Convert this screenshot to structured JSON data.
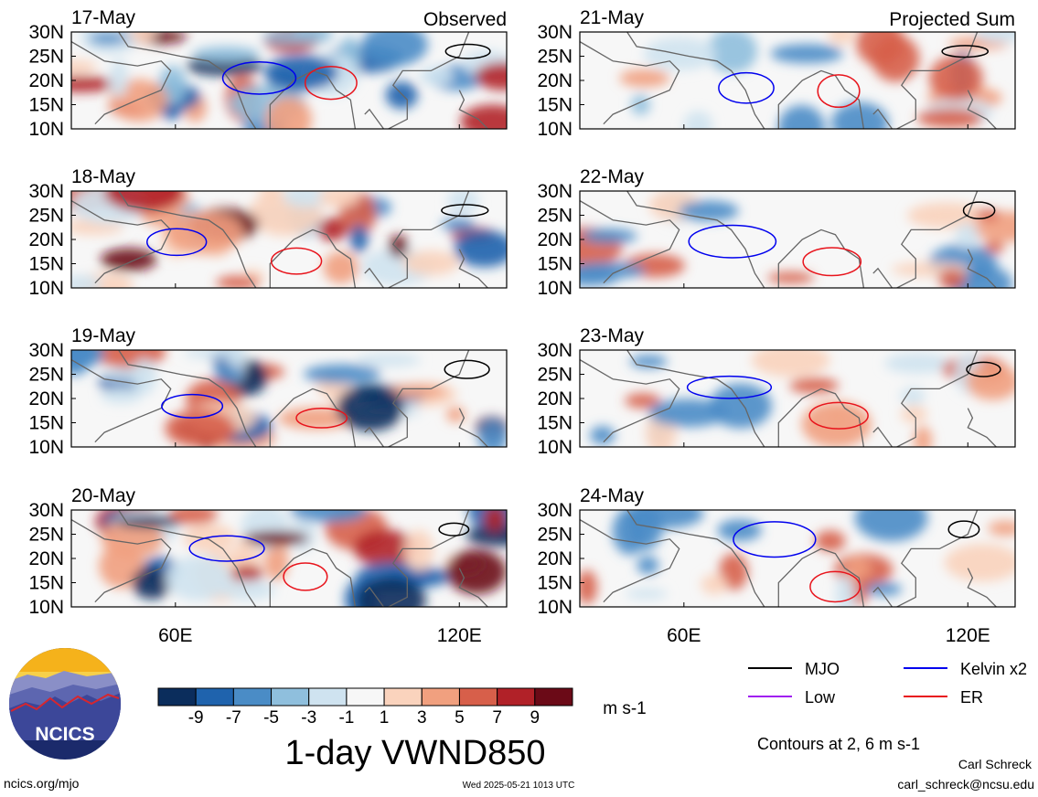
{
  "chart_data": {
    "type": "heatmap",
    "variable_title": "1-day VWND850",
    "units": "m s-1",
    "columns": [
      {
        "header": "Observed",
        "dates": [
          "17-May",
          "18-May",
          "19-May",
          "20-May"
        ]
      },
      {
        "header": "Projected Sum",
        "dates": [
          "21-May",
          "22-May",
          "23-May",
          "24-May"
        ]
      }
    ],
    "y_ticks": [
      "30N",
      "25N",
      "20N",
      "15N",
      "10N"
    ],
    "x_ticks": [
      "60E",
      "120E"
    ],
    "lat_range": [
      10,
      30
    ],
    "lon_range": [
      38,
      130
    ],
    "colorbar": {
      "labels": [
        "-9",
        "-7",
        "-5",
        "-3",
        "-1",
        "1",
        "3",
        "5",
        "7",
        "9"
      ],
      "colors": [
        "#0b2d5c",
        "#1f63ad",
        "#4a8cc6",
        "#8fbfdd",
        "#cfe3f0",
        "#f7f7f7",
        "#fad3bd",
        "#f1a07f",
        "#d75f4a",
        "#b12128",
        "#6b0a17"
      ]
    },
    "legend": [
      {
        "label": "MJO",
        "color": "#000000"
      },
      {
        "label": "Kelvin x2",
        "color": "#0000ee"
      },
      {
        "label": "Low",
        "color": "#a020f0"
      },
      {
        "label": "ER",
        "color": "#e8141c"
      }
    ],
    "contour_note": "Contours at 2, 6 m s-1"
  },
  "footer": {
    "site": "ncics.org/mjo",
    "timestamp": "Wed 2025-05-21 1013 UTC",
    "author": "Carl Schreck",
    "email": "carl_schreck@ncsu.edu"
  },
  "logo": {
    "text": "NCICS"
  }
}
